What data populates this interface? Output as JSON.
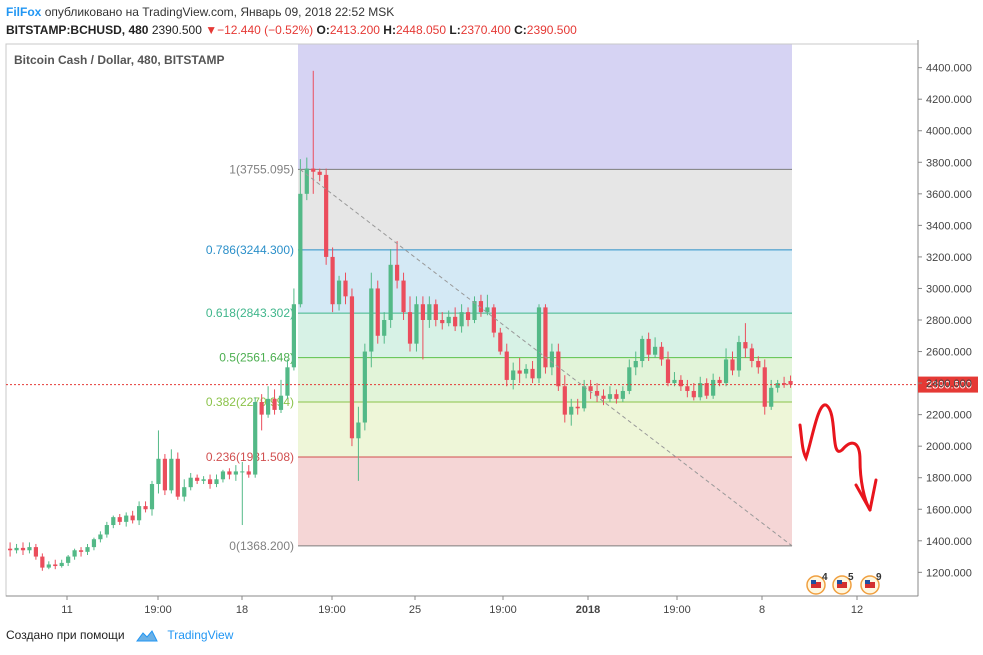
{
  "header": {
    "author": "FilFox",
    "published": "опубликовано на TradingView.com, Январь 09, 2018 22:52 MSK",
    "symbol": "BITSTAMP:BCHUSD, 480",
    "last": "2390.500",
    "change": "−12.440 (−0.52%)",
    "o_label": "O:",
    "o_value": "2413.200",
    "h_label": "H:",
    "h_value": "2448.050",
    "l_label": "L:",
    "l_value": "2370.400",
    "c_label": "C:",
    "c_value": "2390.500"
  },
  "footer": {
    "created": "Создано при помощи",
    "brand": "TradingView"
  },
  "colors": {
    "up": "#53b987",
    "down": "#eb4d5c",
    "blue_text": "#2196f3",
    "fib_top": "#d6d3f3",
    "fib_1": "#e6e6e6",
    "fib_786": "#d4e9f5",
    "fib_618": "#d7f2e6",
    "fib_5": "#e2f4d9",
    "fib_382": "#eef6d8",
    "fib_236": "#f5d6d6",
    "arrow": "#e8151d"
  },
  "chart_data": {
    "type": "candlestick",
    "title": "Bitcoin Cash / Dollar, 480, BITSTAMP",
    "ylim": [
      1050,
      4550
    ],
    "y_ticks": [
      "4400.000",
      "4200.000",
      "4000.000",
      "3800.000",
      "3600.000",
      "3400.000",
      "3200.000",
      "3000.000",
      "2800.000",
      "2600.000",
      "2400.000",
      "2200.000",
      "2000.000",
      "1800.000",
      "1600.000",
      "1400.000",
      "1200.000"
    ],
    "x_ticks": [
      "11",
      "19:00",
      "18",
      "19:00",
      "25",
      "19:00",
      "2018",
      "19:00",
      "8",
      "12"
    ],
    "last_price_label": "2390.500",
    "last_price": 2390.5,
    "fib_levels": [
      {
        "label": "1(3755.095)",
        "value": 3755.095
      },
      {
        "label": "0.786(3244.300)",
        "value": 3244.3
      },
      {
        "label": "0.618(2843.302)",
        "value": 2843.302
      },
      {
        "label": "0.5(2561.648)",
        "value": 2561.648
      },
      {
        "label": "0.382(2279.994)",
        "value": 2279.994
      },
      {
        "label": "0.236(1931.508)",
        "value": 1931.508
      },
      {
        "label": "0(1368.200)",
        "value": 1368.2
      }
    ],
    "fib_top_value": 4550,
    "event_badges": [
      "4",
      "5",
      "9"
    ],
    "candles": [
      [
        1350,
        1340,
        1390,
        1300
      ],
      [
        1340,
        1355,
        1380,
        1320
      ],
      [
        1355,
        1340,
        1390,
        1310
      ],
      [
        1340,
        1360,
        1390,
        1320
      ],
      [
        1360,
        1300,
        1380,
        1280
      ],
      [
        1300,
        1230,
        1320,
        1210
      ],
      [
        1230,
        1250,
        1270,
        1220
      ],
      [
        1250,
        1240,
        1280,
        1220
      ],
      [
        1240,
        1260,
        1280,
        1230
      ],
      [
        1260,
        1300,
        1310,
        1240
      ],
      [
        1300,
        1340,
        1350,
        1280
      ],
      [
        1340,
        1330,
        1360,
        1300
      ],
      [
        1330,
        1360,
        1380,
        1310
      ],
      [
        1360,
        1410,
        1420,
        1340
      ],
      [
        1410,
        1440,
        1460,
        1390
      ],
      [
        1440,
        1500,
        1520,
        1420
      ],
      [
        1500,
        1550,
        1560,
        1480
      ],
      [
        1550,
        1520,
        1570,
        1500
      ],
      [
        1520,
        1560,
        1580,
        1490
      ],
      [
        1560,
        1530,
        1590,
        1510
      ],
      [
        1530,
        1620,
        1650,
        1500
      ],
      [
        1620,
        1600,
        1650,
        1580
      ],
      [
        1600,
        1760,
        1780,
        1560
      ],
      [
        1760,
        1920,
        2100,
        1700
      ],
      [
        1920,
        1720,
        1950,
        1690
      ],
      [
        1720,
        1920,
        1980,
        1700
      ],
      [
        1920,
        1680,
        1960,
        1660
      ],
      [
        1680,
        1740,
        1790,
        1650
      ],
      [
        1740,
        1800,
        1830,
        1720
      ],
      [
        1800,
        1780,
        1820,
        1760
      ],
      [
        1780,
        1790,
        1810,
        1760
      ],
      [
        1790,
        1760,
        1820,
        1730
      ],
      [
        1760,
        1790,
        1820,
        1740
      ],
      [
        1790,
        1840,
        1850,
        1770
      ],
      [
        1840,
        1820,
        1860,
        1790
      ],
      [
        1820,
        1840,
        1880,
        1780
      ],
      [
        1840,
        1840,
        1900,
        1500
      ],
      [
        1840,
        1820,
        1880,
        1800
      ],
      [
        1820,
        2280,
        2310,
        1800
      ],
      [
        2280,
        2200,
        2330,
        2100
      ],
      [
        2200,
        2300,
        2380,
        2180
      ],
      [
        2300,
        2230,
        2360,
        2200
      ],
      [
        2230,
        2320,
        2420,
        2210
      ],
      [
        2320,
        2500,
        2550,
        2300
      ],
      [
        2500,
        2900,
        3000,
        2480
      ],
      [
        2900,
        3600,
        3820,
        2880
      ],
      [
        3600,
        3760,
        3830,
        3560
      ],
      [
        3760,
        3740,
        4380,
        3600
      ],
      [
        3740,
        3720,
        3760,
        3680
      ],
      [
        3720,
        3200,
        3760,
        3150
      ],
      [
        3200,
        2900,
        3260,
        2850
      ],
      [
        2900,
        3050,
        3080,
        2860
      ],
      [
        3050,
        2950,
        3100,
        2900
      ],
      [
        2950,
        2050,
        3000,
        2000
      ],
      [
        2050,
        2150,
        2250,
        1780
      ],
      [
        2150,
        2600,
        2650,
        2100
      ],
      [
        2600,
        3000,
        3100,
        2500
      ],
      [
        3000,
        2700,
        3050,
        2650
      ],
      [
        2700,
        2800,
        2850,
        2650
      ],
      [
        2800,
        3150,
        3250,
        2750
      ],
      [
        3150,
        3050,
        3300,
        3000
      ],
      [
        3050,
        2850,
        3100,
        2800
      ],
      [
        2850,
        2650,
        2950,
        2600
      ],
      [
        2650,
        2900,
        2950,
        2600
      ],
      [
        2900,
        2800,
        2950,
        2550
      ],
      [
        2800,
        2900,
        2950,
        2750
      ],
      [
        2900,
        2800,
        2930,
        2760
      ],
      [
        2800,
        2780,
        2850,
        2740
      ],
      [
        2780,
        2820,
        2860,
        2760
      ],
      [
        2820,
        2760,
        2880,
        2730
      ],
      [
        2760,
        2850,
        2900,
        2720
      ],
      [
        2850,
        2800,
        2880,
        2760
      ],
      [
        2800,
        2920,
        2950,
        2780
      ],
      [
        2920,
        2850,
        2960,
        2820
      ],
      [
        2850,
        2880,
        2960,
        2830
      ],
      [
        2880,
        2720,
        2900,
        2690
      ],
      [
        2720,
        2600,
        2750,
        2580
      ],
      [
        2600,
        2420,
        2650,
        2380
      ],
      [
        2420,
        2480,
        2530,
        2360
      ],
      [
        2480,
        2460,
        2560,
        2400
      ],
      [
        2460,
        2490,
        2520,
        2430
      ],
      [
        2490,
        2430,
        2540,
        2400
      ],
      [
        2430,
        2880,
        2900,
        2400
      ],
      [
        2880,
        2500,
        2900,
        2460
      ],
      [
        2500,
        2600,
        2650,
        2450
      ],
      [
        2600,
        2380,
        2650,
        2350
      ],
      [
        2380,
        2200,
        2450,
        2150
      ],
      [
        2200,
        2250,
        2300,
        2130
      ],
      [
        2250,
        2240,
        2300,
        2200
      ],
      [
        2240,
        2380,
        2420,
        2220
      ],
      [
        2380,
        2350,
        2420,
        2300
      ],
      [
        2350,
        2320,
        2400,
        2280
      ],
      [
        2320,
        2300,
        2360,
        2260
      ],
      [
        2300,
        2330,
        2380,
        2280
      ],
      [
        2330,
        2300,
        2360,
        2270
      ],
      [
        2300,
        2350,
        2380,
        2280
      ],
      [
        2350,
        2500,
        2550,
        2330
      ],
      [
        2500,
        2540,
        2600,
        2450
      ],
      [
        2540,
        2680,
        2700,
        2500
      ],
      [
        2680,
        2580,
        2720,
        2540
      ],
      [
        2580,
        2630,
        2690,
        2560
      ],
      [
        2630,
        2550,
        2660,
        2510
      ],
      [
        2550,
        2400,
        2600,
        2380
      ],
      [
        2400,
        2420,
        2470,
        2380
      ],
      [
        2420,
        2380,
        2450,
        2350
      ],
      [
        2380,
        2350,
        2420,
        2310
      ],
      [
        2350,
        2310,
        2400,
        2290
      ],
      [
        2310,
        2400,
        2440,
        2290
      ],
      [
        2400,
        2320,
        2430,
        2300
      ],
      [
        2320,
        2420,
        2460,
        2300
      ],
      [
        2420,
        2400,
        2440,
        2380
      ],
      [
        2400,
        2550,
        2620,
        2380
      ],
      [
        2550,
        2480,
        2600,
        2450
      ],
      [
        2480,
        2660,
        2700,
        2440
      ],
      [
        2660,
        2620,
        2780,
        2560
      ],
      [
        2620,
        2540,
        2650,
        2500
      ],
      [
        2540,
        2500,
        2570,
        2460
      ],
      [
        2500,
        2250,
        2550,
        2200
      ],
      [
        2250,
        2370,
        2420,
        2230
      ],
      [
        2370,
        2400,
        2420,
        2340
      ],
      [
        2400,
        2390,
        2440,
        2370
      ],
      [
        2413,
        2390.5,
        2448,
        2370
      ]
    ]
  }
}
